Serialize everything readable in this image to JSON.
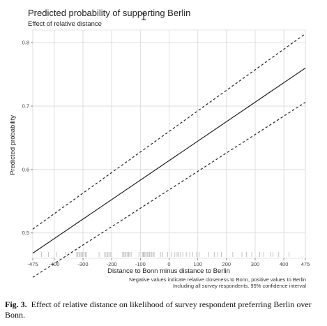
{
  "chart_data": {
    "type": "line",
    "title": "Predicted probability of supporting Berlin",
    "subtitle": "Effect of relative distance",
    "xlabel": "Distance to Bonn minus distance to Berlin",
    "ylabel": "Predicted probability",
    "xlim": [
      -475,
      475
    ],
    "ylim": [
      0.46,
      0.82
    ],
    "x_ticks": [
      -475,
      -400,
      -300,
      -200,
      -100,
      0,
      100,
      200,
      300,
      400,
      475
    ],
    "y_ticks": [
      0.5,
      0.6,
      0.7,
      0.8
    ],
    "y_tick_labels": [
      "0.5",
      "0.6",
      "0.7",
      "0.8"
    ],
    "grid": true,
    "series": [
      {
        "style": "solid",
        "x": [
          -475,
          475
        ],
        "y": [
          0.468,
          0.76
        ]
      },
      {
        "style": "dashed",
        "x": [
          -475,
          475
        ],
        "y": [
          0.506,
          0.814
        ]
      },
      {
        "style": "dashed",
        "x": [
          -475,
          475
        ],
        "y": [
          0.43,
          0.706
        ]
      }
    ],
    "rug_x": [
      -445,
      -420,
      -392,
      -360,
      -322,
      -318,
      -314,
      -310,
      -306,
      -301,
      -297,
      -292,
      -288,
      -244,
      -225,
      -220,
      -214,
      -210,
      -205,
      -200,
      -162,
      -158,
      -154,
      -150,
      -145,
      -141,
      -137,
      -132,
      -105,
      -93,
      -90,
      -87,
      -84,
      -80,
      -76,
      -72,
      -68,
      -64,
      -60,
      -56,
      -52,
      -30,
      -22,
      -5,
      8,
      20,
      28,
      34,
      40,
      48,
      60,
      72,
      82,
      96,
      105,
      138,
      158,
      170,
      182,
      222,
      254,
      270,
      288,
      316,
      330,
      352,
      362,
      382,
      418
    ],
    "notes": [
      "Negative values indicate relative closeness to Bonn, positive values to Berlin",
      "Including all survey respondents. 95% confidence interval"
    ]
  },
  "caption": {
    "label": "Fig. 3.",
    "text": "Effect of relative distance on likelihood of survey respondent preferring Berlin over Bonn."
  },
  "cursor": "I"
}
